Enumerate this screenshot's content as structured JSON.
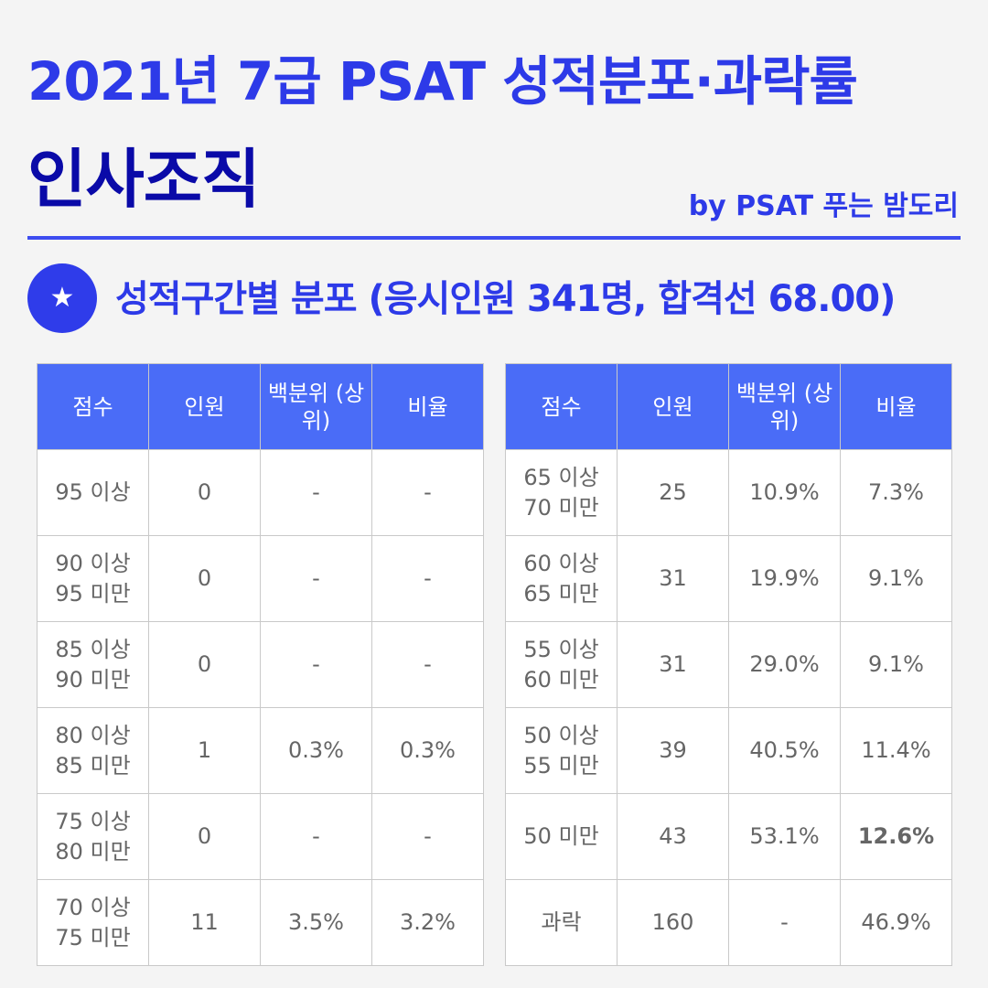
{
  "header": {
    "title_line1": "2021년 7급 PSAT 성적분포·과락률",
    "title_line2": "인사조직",
    "byline": "by PSAT 푸는 밤도리"
  },
  "section": {
    "icon": "star-icon",
    "icon_glyph": "★",
    "title": "성적구간별 분포 (응시인원 341명, 합격선 68.00)"
  },
  "columns": {
    "score": "점수",
    "count": "인원",
    "percentile_line1": "백분위",
    "percentile_line2": "(상위)",
    "ratio": "비율"
  },
  "left_rows": [
    {
      "score_line1": "95 이상",
      "score_line2": "",
      "count": "0",
      "percentile": "-",
      "ratio": "-"
    },
    {
      "score_line1": "90 이상",
      "score_line2": "95 미만",
      "count": "0",
      "percentile": "-",
      "ratio": "-"
    },
    {
      "score_line1": "85 이상",
      "score_line2": "90 미만",
      "count": "0",
      "percentile": "-",
      "ratio": "-"
    },
    {
      "score_line1": "80 이상",
      "score_line2": "85 미만",
      "count": "1",
      "percentile": "0.3%",
      "ratio": "0.3%"
    },
    {
      "score_line1": "75 이상",
      "score_line2": "80 미만",
      "count": "0",
      "percentile": "-",
      "ratio": "-"
    },
    {
      "score_line1": "70 이상",
      "score_line2": "75 미만",
      "count": "11",
      "percentile": "3.5%",
      "ratio": "3.2%"
    }
  ],
  "right_rows": [
    {
      "score_line1": "65 이상",
      "score_line2": "70 미만",
      "count": "25",
      "percentile": "10.9%",
      "ratio": "7.3%"
    },
    {
      "score_line1": "60 이상",
      "score_line2": "65 미만",
      "count": "31",
      "percentile": "19.9%",
      "ratio": "9.1%"
    },
    {
      "score_line1": "55 이상",
      "score_line2": "60 미만",
      "count": "31",
      "percentile": "29.0%",
      "ratio": "9.1%"
    },
    {
      "score_line1": "50 이상",
      "score_line2": "55 미만",
      "count": "39",
      "percentile": "40.5%",
      "ratio": "11.4%"
    },
    {
      "score_line1": "50 미만",
      "score_line2": "",
      "count": "43",
      "percentile": "53.1%",
      "ratio": "12.6%"
    },
    {
      "score_line1": "과락",
      "score_line2": "",
      "count": "160",
      "percentile": "-",
      "ratio": "46.9%"
    }
  ],
  "colors": {
    "title_blue": "#2d3ae8",
    "subtitle_navy": "#0a0aa8",
    "header_blue": "#4a6cf7",
    "fail_red": "#f0452e"
  }
}
